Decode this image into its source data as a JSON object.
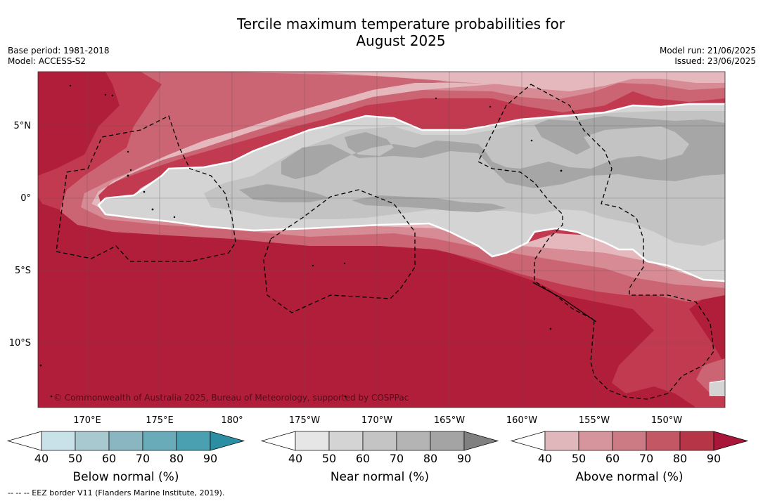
{
  "title_line1": "Tercile maximum temperature probabilities for",
  "title_line2": "August 2025",
  "base_period": "Base period: 1981-2018",
  "model": "Model: ACCESS-S2",
  "model_run": "Model run: 21/06/2025",
  "issued": "Issued: 23/06/2025",
  "copyright": "© Commonwealth of Australia 2025, Bureau of Meteorology, supported by COSPPac",
  "footer": "--  --  -- EEZ border V11 (Flanders Marine Institute, 2019).",
  "lat_labels": [
    "5°N",
    "0°",
    "5°S",
    "10°S"
  ],
  "lon_labels": [
    "170°E",
    "175°E",
    "180°",
    "175°W",
    "170°W",
    "165°W",
    "160°W",
    "155°W",
    "150°W"
  ],
  "colorbars": [
    {
      "title": "Below normal (%)",
      "ticks": [
        "40",
        "50",
        "60",
        "70",
        "80",
        "90"
      ],
      "colors": [
        "#ffffff",
        "#c9e1e8",
        "#a8c9cf",
        "#89b6c1",
        "#6aabb9",
        "#4aa0b0",
        "#2b8ea3"
      ]
    },
    {
      "title": "Near normal (%)",
      "ticks": [
        "40",
        "50",
        "60",
        "70",
        "80",
        "90"
      ],
      "colors": [
        "#ffffff",
        "#e6e6e6",
        "#d4d4d4",
        "#c4c4c4",
        "#b4b4b4",
        "#a4a4a4",
        "#808080"
      ]
    },
    {
      "title": "Above normal (%)",
      "ticks": [
        "40",
        "50",
        "60",
        "70",
        "80",
        "90"
      ],
      "colors": [
        "#ffffff",
        "#e0b8bc",
        "#d6949c",
        "#cc7a84",
        "#c45764",
        "#b63648",
        "#a8163a"
      ]
    }
  ]
}
